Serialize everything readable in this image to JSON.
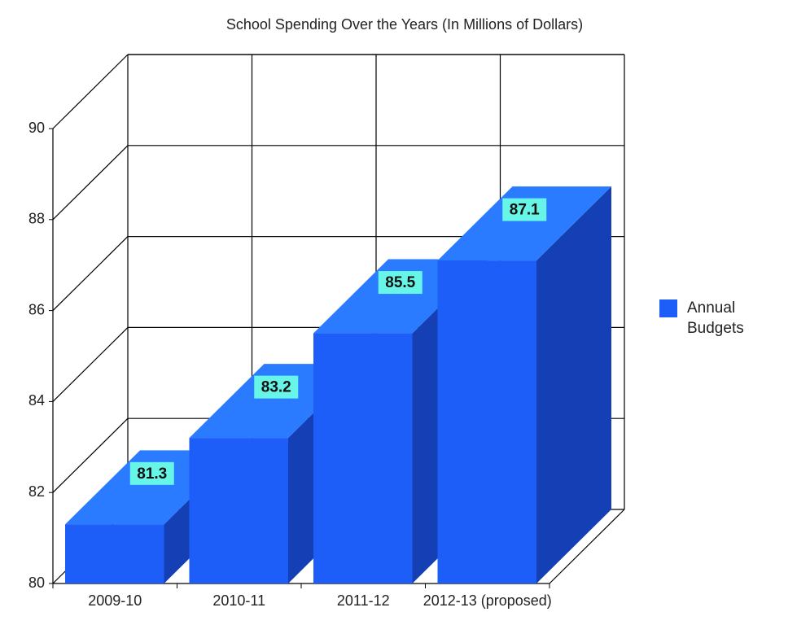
{
  "chart_data": {
    "type": "bar",
    "title": "School Spending Over the Years (In Millions of Dollars)",
    "categories": [
      "2009-10",
      "2010-11",
      "2011-12",
      "2012-13 (proposed)"
    ],
    "series": [
      {
        "name": "Annual Budgets",
        "color": "#1e5ef8",
        "values": [
          81.3,
          83.2,
          85.5,
          87.1
        ]
      }
    ],
    "ylim": [
      80,
      90
    ],
    "yticks": [
      80,
      82,
      84,
      86,
      88,
      90
    ],
    "grid": true,
    "legend": "right"
  }
}
